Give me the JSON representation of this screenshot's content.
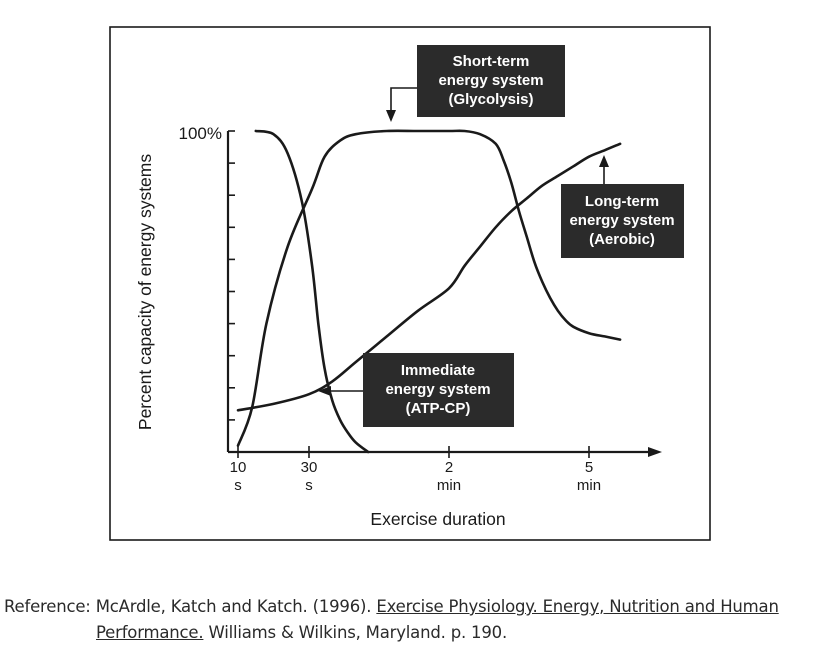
{
  "chart_data": {
    "type": "line",
    "title": "",
    "xlabel": "Exercise duration",
    "ylabel": "Percent capacity of energy systems",
    "y_top_label": "100%",
    "ylim": [
      0,
      100
    ],
    "x_ticks": [
      {
        "value": "10",
        "unit": "s"
      },
      {
        "value": "30",
        "unit": "s"
      },
      {
        "value": "2",
        "unit": "min"
      },
      {
        "value": "5",
        "unit": "min"
      }
    ],
    "x_ticks_seconds": [
      10,
      30,
      120,
      300
    ],
    "series": [
      {
        "name": "Immediate energy system (ATP-CP)",
        "x": [
          15,
          20,
          24,
          28,
          32,
          36,
          40,
          45,
          50,
          55,
          60,
          68
        ],
        "y": [
          100,
          99,
          93,
          78,
          58,
          40,
          26,
          16,
          10,
          6,
          3,
          0
        ]
      },
      {
        "name": "Short-term energy system (Glycolysis)",
        "x": [
          10,
          14,
          18,
          24,
          32,
          40,
          50,
          60,
          80,
          100,
          120,
          140,
          160,
          180,
          190,
          200,
          210,
          220,
          230,
          240,
          250,
          260,
          270,
          280,
          300,
          320,
          340
        ],
        "y": [
          2,
          14,
          40,
          64,
          82,
          92,
          97,
          99,
          100,
          100,
          100,
          100,
          99,
          96,
          91,
          84,
          75,
          67,
          59,
          53,
          48,
          44,
          41,
          39,
          37,
          36,
          35
        ]
      },
      {
        "name": "Long-term energy system (Aerobic)",
        "x": [
          10,
          20,
          30,
          45,
          60,
          80,
          100,
          120,
          140,
          160,
          180,
          200,
          220,
          240,
          260,
          280,
          300,
          320,
          340
        ],
        "y": [
          13,
          15,
          18,
          22,
          28,
          36,
          44,
          51,
          58,
          64,
          70,
          75,
          79,
          83,
          86,
          89,
          92,
          94,
          96
        ]
      }
    ],
    "annotations": [
      {
        "id": "short",
        "lines": [
          "Short-term",
          "energy system",
          "(Glycolysis)"
        ]
      },
      {
        "id": "long",
        "lines": [
          "Long-term",
          "energy system",
          "(Aerobic)"
        ]
      },
      {
        "id": "immediate",
        "lines": [
          "Immediate",
          "energy system",
          "(ATP-CP)"
        ]
      }
    ]
  },
  "reference": {
    "label": "Reference:",
    "authors": "McArdle, Katch and Katch. (1996).",
    "title_part1": "Exercise Physiology. Energy, Nutrition and Human",
    "title_part2": "Performance.",
    "publisher": "Williams & Wilkins, Maryland. p. 190."
  },
  "colors": {
    "ink": "#1a1a1a",
    "label_box": "#2b2b2b",
    "label_text": "#ffffff"
  }
}
